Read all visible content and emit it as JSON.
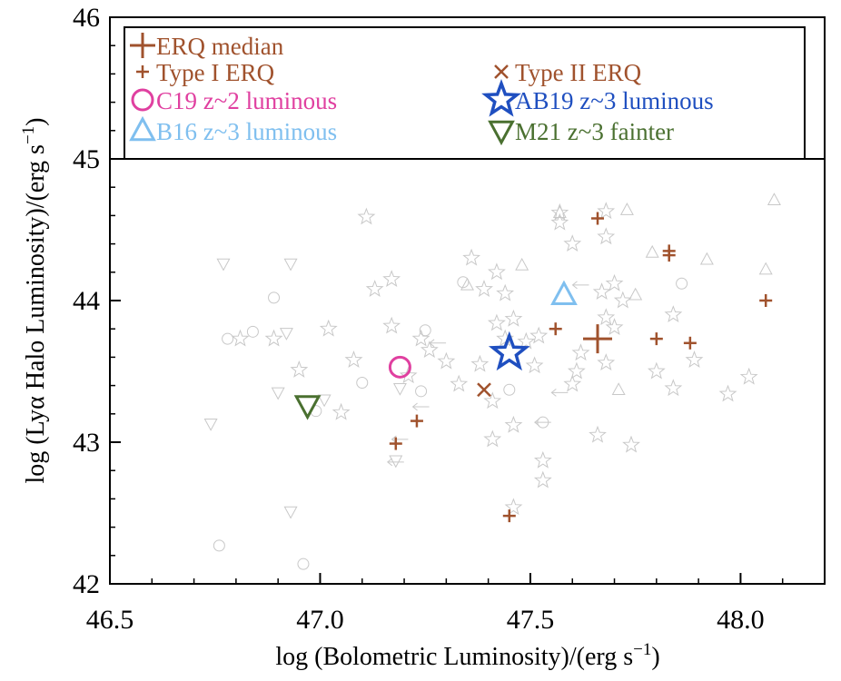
{
  "chart_data": {
    "type": "scatter",
    "xlabel": "log (Bolometric Luminosity)/(erg s",
    "xlabel_sup": "−1",
    "xlabel_end": ")",
    "ylabel": "log (Lyα Halo Luminosity)/(erg s",
    "ylabel_sup": "−1",
    "ylabel_end": ")",
    "xlim": [
      46.5,
      48.2
    ],
    "ylim": [
      42.0,
      46.0
    ],
    "xticks": [
      46.5,
      47.0,
      47.5,
      48.0
    ],
    "xtick_labels": [
      "46.5",
      "47.0",
      "47.5",
      "48.0"
    ],
    "yticks": [
      42,
      43,
      44,
      45,
      46
    ],
    "ytick_labels": [
      "42",
      "43",
      "44",
      "45",
      "46"
    ],
    "legend_divider_y": 45.0,
    "legend": [
      {
        "label": "ERQ median",
        "marker": "plus-large",
        "color": "#a0522d"
      },
      {
        "label": "Type I ERQ",
        "marker": "plus-small",
        "color": "#a0522d"
      },
      {
        "label": "Type II ERQ",
        "marker": "cross",
        "color": "#a0522d"
      },
      {
        "label": "C19 z~2 luminous",
        "marker": "circle",
        "color": "#e040a0"
      },
      {
        "label": "AB19 z~3 luminous",
        "marker": "star",
        "color": "#1f4fc0"
      },
      {
        "label": "B16 z~3 luminous",
        "marker": "triangle-up",
        "color": "#7fbfef"
      },
      {
        "label": "M21 z~3 fainter",
        "marker": "triangle-down",
        "color": "#4a7030"
      }
    ],
    "series": [
      {
        "name": "ERQ median",
        "marker": "plus-large",
        "color": "#a0522d",
        "points": [
          [
            47.66,
            43.73
          ]
        ]
      },
      {
        "name": "Type I ERQ",
        "marker": "plus-small",
        "color": "#a0522d",
        "points": [
          [
            47.66,
            44.58
          ],
          [
            47.83,
            44.35
          ],
          [
            47.83,
            44.32
          ],
          [
            48.06,
            44.0
          ],
          [
            47.56,
            43.8
          ],
          [
            47.8,
            43.73
          ],
          [
            47.88,
            43.7
          ],
          [
            47.23,
            43.15
          ],
          [
            47.18,
            42.99
          ],
          [
            47.45,
            42.48
          ]
        ]
      },
      {
        "name": "Type II ERQ",
        "marker": "cross",
        "color": "#a0522d",
        "points": [
          [
            47.39,
            43.37
          ]
        ]
      },
      {
        "name": "C19 z~2 luminous",
        "marker": "circle",
        "color": "#e040a0",
        "points": [
          [
            47.19,
            43.53
          ]
        ]
      },
      {
        "name": "AB19 z~3 luminous",
        "marker": "star",
        "color": "#1f4fc0",
        "points": [
          [
            47.45,
            43.63
          ]
        ]
      },
      {
        "name": "B16 z~3 luminous",
        "marker": "triangle-up",
        "color": "#7fbfef",
        "points": [
          [
            47.58,
            44.04
          ]
        ]
      },
      {
        "name": "M21 z~3 fainter",
        "marker": "triangle-down",
        "color": "#4a7030",
        "points": [
          [
            46.97,
            43.26
          ]
        ]
      }
    ],
    "background_points": {
      "color": "#c8c8c8",
      "stars": [
        [
          47.11,
          44.59
        ],
        [
          47.17,
          44.15
        ],
        [
          47.13,
          44.08
        ],
        [
          47.02,
          43.8
        ],
        [
          47.08,
          43.58
        ],
        [
          47.05,
          43.21
        ],
        [
          47.17,
          43.82
        ],
        [
          47.24,
          43.73
        ],
        [
          47.26,
          43.65
        ],
        [
          47.21,
          43.47
        ],
        [
          47.3,
          43.57
        ],
        [
          47.36,
          44.3
        ],
        [
          47.39,
          44.08
        ],
        [
          47.42,
          44.2
        ],
        [
          47.44,
          44.05
        ],
        [
          47.46,
          43.87
        ],
        [
          47.42,
          43.84
        ],
        [
          47.44,
          43.73
        ],
        [
          47.49,
          43.71
        ],
        [
          47.52,
          43.75
        ],
        [
          47.51,
          43.54
        ],
        [
          47.38,
          43.55
        ],
        [
          47.41,
          43.29
        ],
        [
          47.41,
          43.02
        ],
        [
          47.46,
          43.12
        ],
        [
          47.53,
          42.87
        ],
        [
          47.53,
          42.73
        ],
        [
          47.46,
          42.54
        ],
        [
          47.57,
          44.62
        ],
        [
          47.57,
          44.55
        ],
        [
          47.6,
          44.4
        ],
        [
          47.68,
          44.63
        ],
        [
          47.68,
          44.45
        ],
        [
          47.7,
          44.12
        ],
        [
          47.67,
          44.06
        ],
        [
          47.72,
          44.0
        ],
        [
          47.68,
          43.88
        ],
        [
          47.7,
          43.81
        ],
        [
          47.62,
          43.63
        ],
        [
          47.61,
          43.5
        ],
        [
          47.68,
          43.56
        ],
        [
          47.6,
          43.41
        ],
        [
          47.66,
          43.05
        ],
        [
          47.74,
          42.98
        ],
        [
          47.8,
          43.5
        ],
        [
          47.84,
          43.9
        ],
        [
          47.84,
          43.38
        ],
        [
          47.89,
          43.58
        ],
        [
          47.97,
          43.34
        ],
        [
          48.02,
          43.46
        ],
        [
          46.81,
          43.73
        ],
        [
          46.89,
          43.73
        ],
        [
          46.95,
          43.51
        ],
        [
          47.33,
          43.41
        ]
      ],
      "circles": [
        [
          46.78,
          43.73
        ],
        [
          46.84,
          43.78
        ],
        [
          46.89,
          44.02
        ],
        [
          47.1,
          43.42
        ],
        [
          47.25,
          43.79
        ],
        [
          47.24,
          43.36
        ],
        [
          47.34,
          44.13
        ],
        [
          47.45,
          43.37
        ],
        [
          47.86,
          44.12
        ],
        [
          46.76,
          42.27
        ],
        [
          46.96,
          42.14
        ],
        [
          46.99,
          43.22
        ],
        [
          47.53,
          43.14
        ]
      ],
      "triangles_up": [
        [
          47.48,
          44.25
        ],
        [
          47.57,
          44.62
        ],
        [
          47.73,
          44.64
        ],
        [
          47.79,
          44.34
        ],
        [
          47.92,
          44.29
        ],
        [
          48.08,
          44.71
        ],
        [
          48.06,
          44.22
        ],
        [
          47.35,
          44.11
        ],
        [
          47.71,
          43.37
        ],
        [
          47.75,
          44.04
        ]
      ],
      "triangles_down": [
        [
          46.77,
          44.26
        ],
        [
          46.93,
          44.26
        ],
        [
          46.9,
          43.35
        ],
        [
          46.92,
          43.77
        ],
        [
          46.93,
          42.51
        ],
        [
          46.74,
          43.13
        ],
        [
          47.19,
          43.38
        ],
        [
          47.18,
          42.87
        ],
        [
          47.01,
          43.3
        ]
      ],
      "arrows_left": [
        [
          47.19,
          43.02
        ],
        [
          47.18,
          42.86
        ],
        [
          47.24,
          43.25
        ],
        [
          47.53,
          43.14
        ],
        [
          47.62,
          44.11
        ],
        [
          47.28,
          43.7
        ],
        [
          47.57,
          43.35
        ]
      ]
    }
  }
}
